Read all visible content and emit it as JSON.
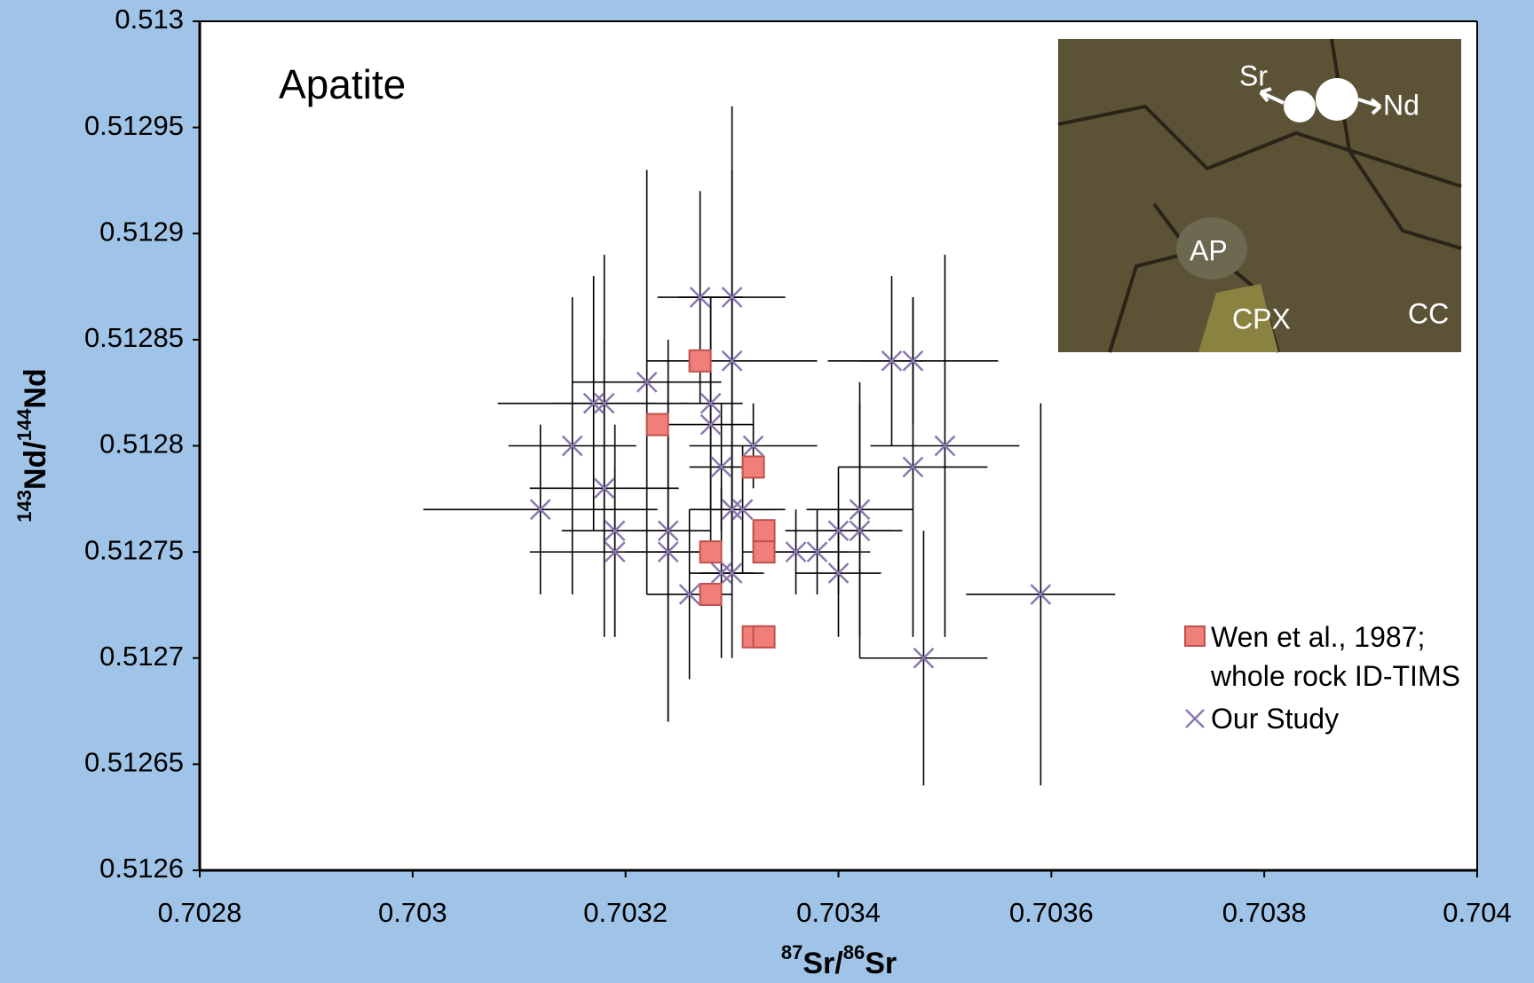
{
  "chart_data": {
    "type": "scatter",
    "annotation": "Apatite",
    "xlabel": [
      "87",
      "Sr/",
      "86",
      "Sr"
    ],
    "ylabel": [
      "143",
      "Nd/",
      "144",
      "Nd"
    ],
    "xlim": [
      0.7028,
      0.704
    ],
    "xticks": [
      0.7028,
      0.703,
      0.7032,
      0.7034,
      0.7036,
      0.7038,
      0.704
    ],
    "ylim": [
      0.5126,
      0.513
    ],
    "yticks": [
      0.5126,
      0.51265,
      0.5127,
      0.51275,
      0.5128,
      0.51285,
      0.5129,
      0.51295,
      0.513
    ],
    "inset_labels": [
      "Sr",
      "Nd",
      "AP",
      "CPX",
      "CC"
    ],
    "series": [
      {
        "name": "Wen et al., 1987; whole rock ID-TIMS",
        "marker": "square",
        "color": "#f07f7a",
        "x": [
          0.70327,
          0.70323,
          0.70332,
          0.70333,
          0.70333,
          0.70328,
          0.70328,
          0.70332,
          0.70333
        ],
        "values": [
          0.51284,
          0.51281,
          0.51279,
          0.51276,
          0.51275,
          0.51275,
          0.51273,
          0.51271,
          0.51271
        ]
      },
      {
        "name": "Our Study",
        "marker": "x",
        "color": "#8a78b0",
        "x": [
          0.70312,
          0.70315,
          0.70317,
          0.70318,
          0.70318,
          0.70319,
          0.70319,
          0.70322,
          0.70324,
          0.70324,
          0.70327,
          0.70326,
          0.70328,
          0.70328,
          0.70329,
          0.70329,
          0.7033,
          0.7033,
          0.7033,
          0.7033,
          0.70331,
          0.70332,
          0.70336,
          0.70338,
          0.7034,
          0.7034,
          0.70342,
          0.70342,
          0.70345,
          0.70347,
          0.70347,
          0.70348,
          0.7035,
          0.70359
        ],
        "values": [
          0.51277,
          0.5128,
          0.51282,
          0.51282,
          0.51278,
          0.51276,
          0.51275,
          0.51283,
          0.51276,
          0.51275,
          0.51287,
          0.51273,
          0.51282,
          0.51281,
          0.51279,
          0.51274,
          0.51274,
          0.51284,
          0.51287,
          0.51277,
          0.51277,
          0.5128,
          0.51275,
          0.51275,
          0.51274,
          0.51276,
          0.51277,
          0.51276,
          0.51284,
          0.51284,
          0.51279,
          0.5127,
          0.5128,
          0.51273
        ],
        "xerr": [
          0.00011,
          6e-05,
          9e-05,
          5e-05,
          7e-05,
          5e-05,
          8e-05,
          7e-05,
          4e-05,
          4e-05,
          4e-05,
          4e-05,
          3e-05,
          4e-05,
          3e-05,
          3e-05,
          3e-05,
          8e-05,
          5e-05,
          4e-05,
          4e-05,
          6e-05,
          5e-05,
          5e-05,
          4e-05,
          5e-05,
          5e-05,
          4e-05,
          3e-05,
          8e-05,
          7e-05,
          6e-05,
          7e-05,
          7e-05
        ],
        "yerr": [
          4e-05,
          7e-05,
          6e-05,
          7e-05,
          7e-05,
          5e-05,
          4e-05,
          0.0001,
          9e-05,
          8e-05,
          5e-05,
          4e-05,
          5e-05,
          6e-05,
          3e-05,
          4e-05,
          4e-05,
          9e-05,
          9e-05,
          3e-05,
          3e-05,
          2e-05,
          2e-05,
          2e-05,
          3e-05,
          3e-05,
          6e-05,
          6e-05,
          4e-05,
          3e-05,
          8e-05,
          6e-05,
          9e-05,
          9e-05
        ]
      }
    ]
  }
}
